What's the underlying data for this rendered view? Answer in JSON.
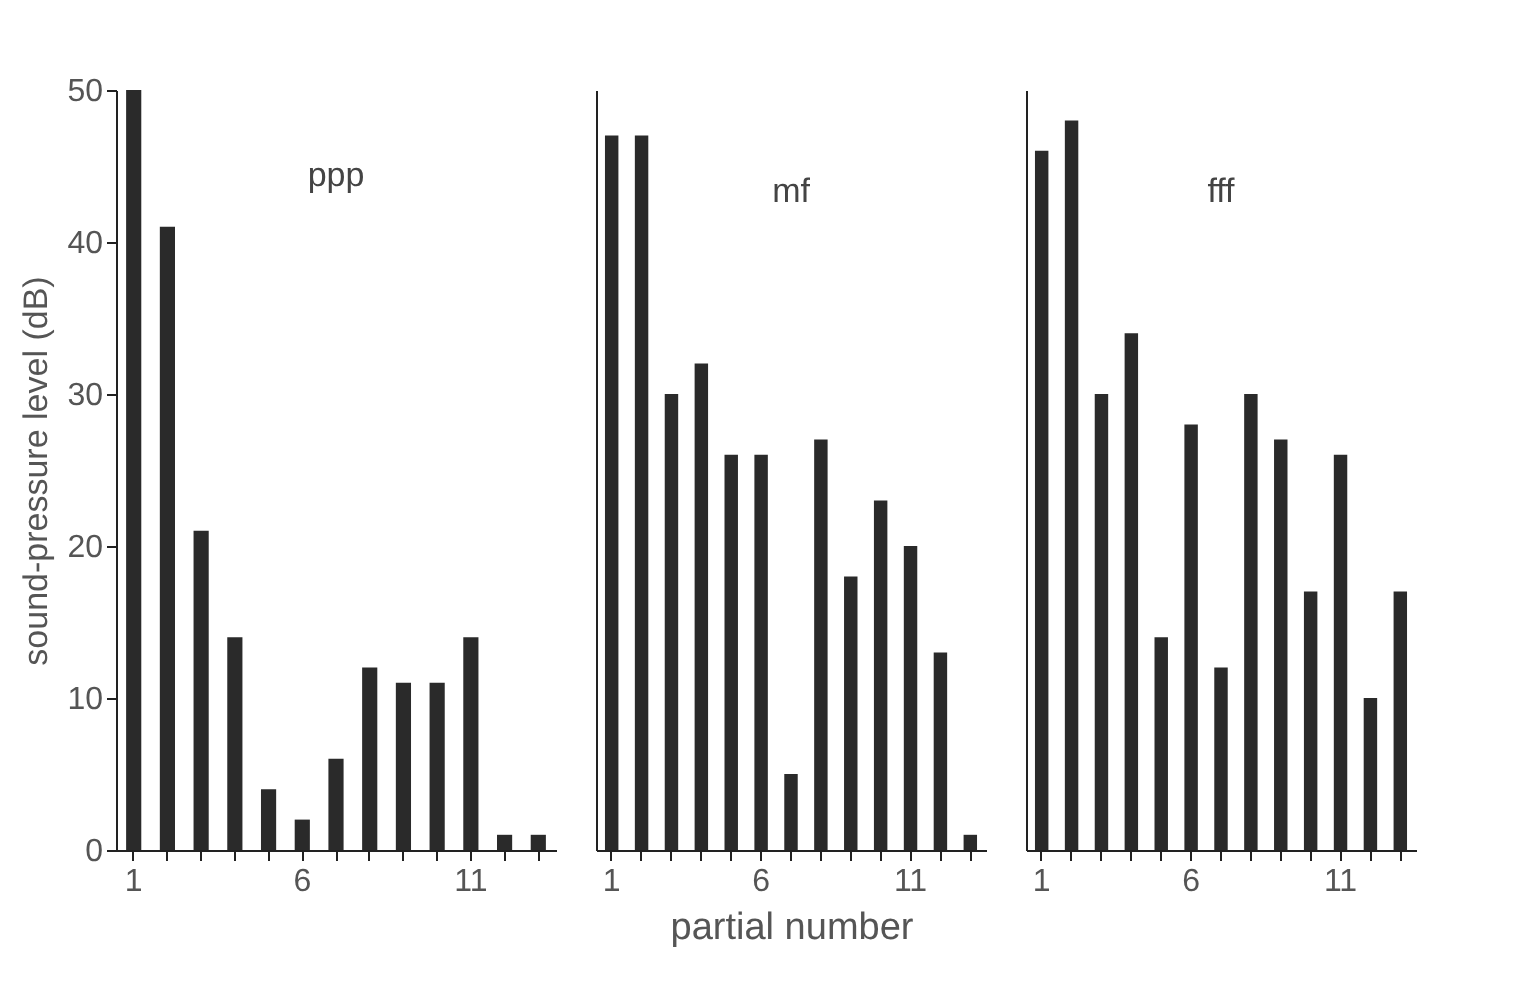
{
  "chart_data": [
    {
      "type": "bar",
      "title": "ppp",
      "ylabel": "sound-pressure level (dB)",
      "categories": [
        "1",
        null,
        null,
        null,
        null,
        "6",
        null,
        null,
        null,
        null,
        "11",
        null,
        null
      ],
      "values": [
        50,
        41,
        21,
        14,
        4,
        2,
        6,
        12,
        11,
        11,
        14,
        1,
        1
      ],
      "color": "#2a2a2a",
      "ylim": [
        0,
        50
      ],
      "yticks": [
        0,
        10,
        20,
        30,
        40,
        50
      ],
      "grid": false
    },
    {
      "type": "bar",
      "title": "mf",
      "xlabel": "partial number",
      "categories": [
        "1",
        null,
        null,
        null,
        null,
        "6",
        null,
        null,
        null,
        null,
        "11",
        null,
        null
      ],
      "values": [
        47,
        47,
        30,
        32,
        26,
        26,
        5,
        27,
        18,
        23,
        20,
        13,
        1
      ],
      "color": "#2a2a2a",
      "ylim": [
        0,
        50
      ],
      "yticks": [
        0,
        10,
        20,
        30,
        40,
        50
      ],
      "grid": false,
      "tick_labels": "x"
    },
    {
      "type": "bar",
      "title": "fff",
      "categories": [
        "1",
        null,
        null,
        null,
        null,
        "6",
        null,
        null,
        null,
        null,
        "11",
        null,
        null
      ],
      "values": [
        46,
        48,
        30,
        34,
        14,
        28,
        12,
        30,
        27,
        17,
        26,
        10,
        17
      ],
      "color": "#2a2a2a",
      "ylim": [
        0,
        50
      ],
      "yticks": [
        0,
        10,
        20,
        30,
        40,
        50
      ],
      "grid": false,
      "tick_labels": "x"
    }
  ]
}
